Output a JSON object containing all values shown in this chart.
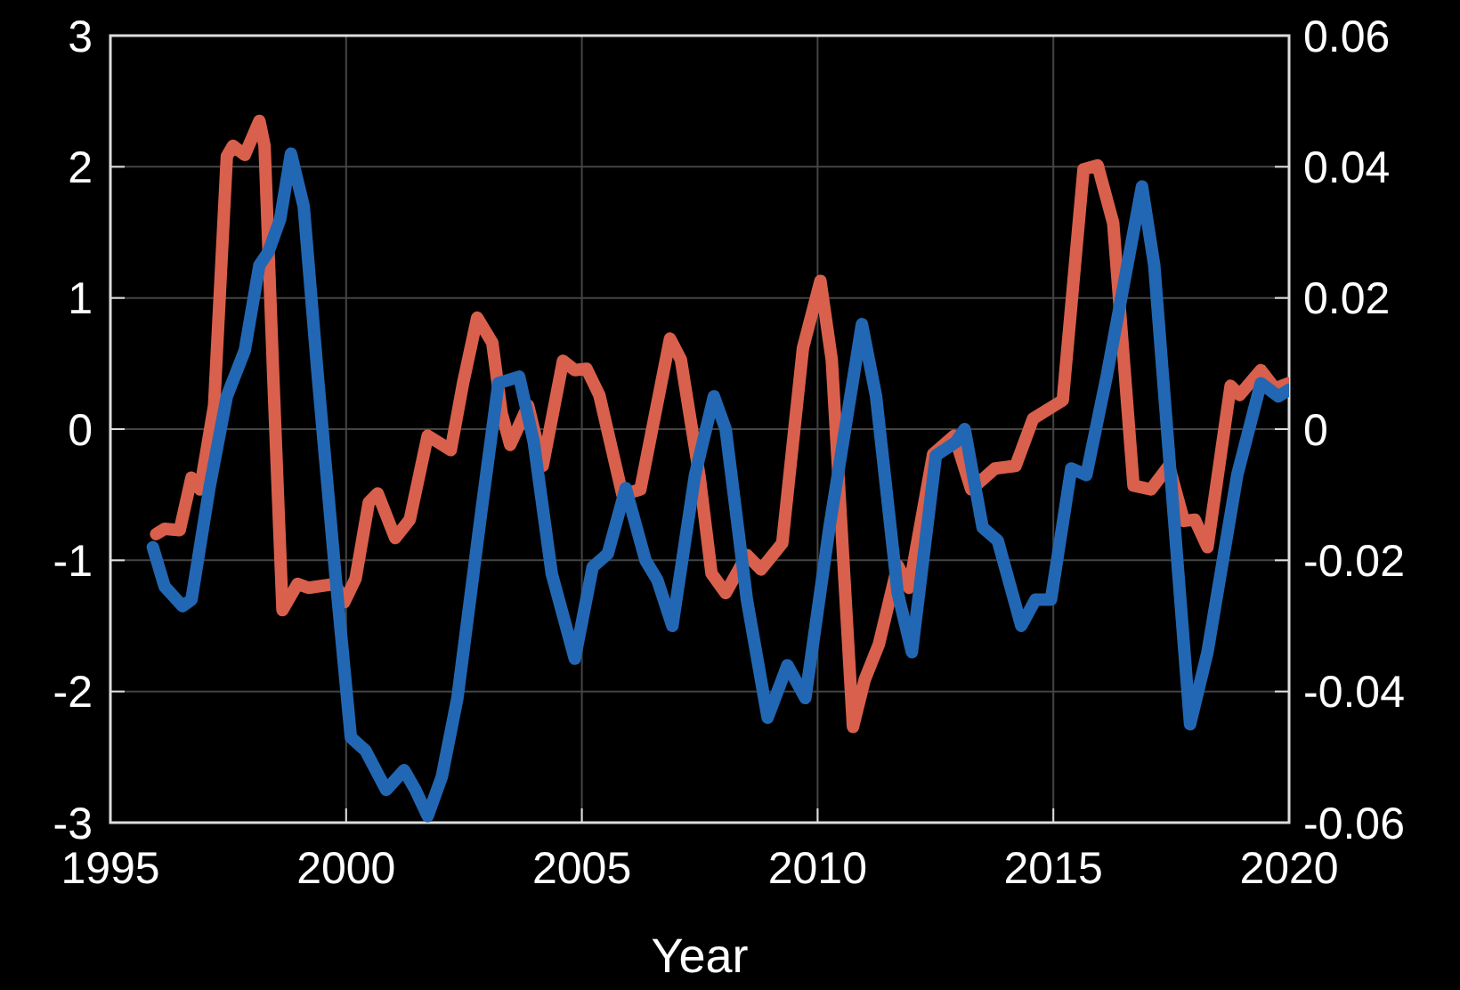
{
  "chart_data": {
    "type": "line",
    "xlabel": "Year",
    "xlim": [
      1995,
      2020
    ],
    "xticks": [
      1995,
      2000,
      2005,
      2010,
      2015,
      2020
    ],
    "ylim": [
      -3,
      3
    ],
    "yticks": [
      -3,
      -2,
      -1,
      0,
      1,
      2,
      3
    ],
    "y2lim": [
      -0.06,
      0.06
    ],
    "y2ticks": [
      -0.06,
      -0.04,
      -0.02,
      0,
      0.02,
      0.04,
      0.06
    ],
    "grid": true,
    "marker": "none",
    "line_style": "solid",
    "series": [
      {
        "color": "#d9604c",
        "x": [
          1995.97,
          1996.15,
          1996.47,
          1996.72,
          1996.9,
          1997.2,
          1997.47,
          1997.6,
          1997.85,
          1998.16,
          1998.27,
          1998.46,
          1998.65,
          1998.97,
          1999.2,
          1999.77,
          1999.96,
          2000.2,
          2000.48,
          2000.67,
          2001.04,
          2001.35,
          2001.73,
          2002.22,
          2002.48,
          2002.78,
          2003.1,
          2003.3,
          2003.48,
          2003.86,
          2004.17,
          2004.6,
          2004.85,
          2005.1,
          2005.37,
          2005.86,
          2006.24,
          2006.87,
          2007.1,
          2007.5,
          2007.75,
          2008.05,
          2008.5,
          2008.8,
          2009.25,
          2009.69,
          2010.06,
          2010.3,
          2010.75,
          2011.0,
          2011.3,
          2011.7,
          2011.94,
          2012.45,
          2012.9,
          2013.26,
          2013.76,
          2014.2,
          2014.57,
          2015.2,
          2015.64,
          2015.94,
          2016.27,
          2016.7,
          2017.07,
          2017.45,
          2017.77,
          2018.0,
          2018.27,
          2018.76,
          2018.95,
          2019.4,
          2019.7,
          2020.0
        ],
        "values": [
          -0.8,
          -0.76,
          -0.77,
          -0.37,
          -0.46,
          0.18,
          2.08,
          2.16,
          2.09,
          2.35,
          2.16,
          0.35,
          -1.38,
          -1.18,
          -1.21,
          -1.18,
          -1.32,
          -1.14,
          -0.56,
          -0.49,
          -0.83,
          -0.69,
          -0.05,
          -0.16,
          0.35,
          0.85,
          0.66,
          0.12,
          -0.12,
          0.18,
          -0.28,
          0.52,
          0.45,
          0.46,
          0.26,
          -0.5,
          -0.46,
          0.69,
          0.53,
          -0.37,
          -1.1,
          -1.25,
          -0.96,
          -1.07,
          -0.87,
          0.62,
          1.13,
          0.53,
          -2.27,
          -1.91,
          -1.64,
          -1.04,
          -1.21,
          -0.19,
          -0.05,
          -0.46,
          -0.3,
          -0.28,
          0.08,
          0.22,
          1.98,
          2.01,
          1.57,
          -0.43,
          -0.46,
          -0.28,
          -0.7,
          -0.69,
          -0.9,
          0.33,
          0.26,
          0.45,
          0.31,
          0.35
        ]
      },
      {
        "color": "#2267b3",
        "axis": "y2",
        "x": [
          1995.9,
          1996.15,
          1996.53,
          1996.72,
          1997.1,
          1997.47,
          1997.85,
          1998.16,
          1998.35,
          1998.6,
          1998.83,
          1999.1,
          1999.4,
          1999.77,
          2000.1,
          2000.41,
          2000.85,
          2001.23,
          2001.47,
          2001.73,
          2002.03,
          2002.36,
          2002.86,
          2003.23,
          2003.67,
          2003.98,
          2004.36,
          2004.85,
          2005.23,
          2005.55,
          2005.93,
          2006.35,
          2006.6,
          2006.92,
          2007.4,
          2007.8,
          2008.05,
          2008.5,
          2008.94,
          2009.36,
          2009.74,
          2010.25,
          2010.94,
          2011.24,
          2011.7,
          2012.0,
          2012.51,
          2012.93,
          2013.12,
          2013.5,
          2013.82,
          2014.32,
          2014.62,
          2014.95,
          2015.38,
          2015.7,
          2016.13,
          2016.88,
          2017.14,
          2017.9,
          2018.27,
          2018.9,
          2019.4,
          2019.77,
          2020.0
        ],
        "values": [
          -0.018,
          -0.024,
          -0.027,
          -0.026,
          -0.009,
          0.005,
          0.012,
          0.025,
          0.027,
          0.032,
          0.042,
          0.034,
          0.008,
          -0.022,
          -0.047,
          -0.049,
          -0.055,
          -0.052,
          -0.055,
          -0.059,
          -0.053,
          -0.041,
          -0.013,
          0.007,
          0.008,
          -0.002,
          -0.022,
          -0.035,
          -0.021,
          -0.019,
          -0.009,
          -0.02,
          -0.023,
          -0.03,
          -0.007,
          0.005,
          0.0,
          -0.026,
          -0.044,
          -0.036,
          -0.041,
          -0.015,
          0.016,
          0.005,
          -0.025,
          -0.034,
          -0.004,
          -0.002,
          0.0,
          -0.015,
          -0.017,
          -0.03,
          -0.026,
          -0.026,
          -0.006,
          -0.007,
          0.008,
          0.037,
          0.025,
          -0.045,
          -0.034,
          -0.007,
          0.007,
          0.005,
          0.006
        ]
      }
    ]
  }
}
